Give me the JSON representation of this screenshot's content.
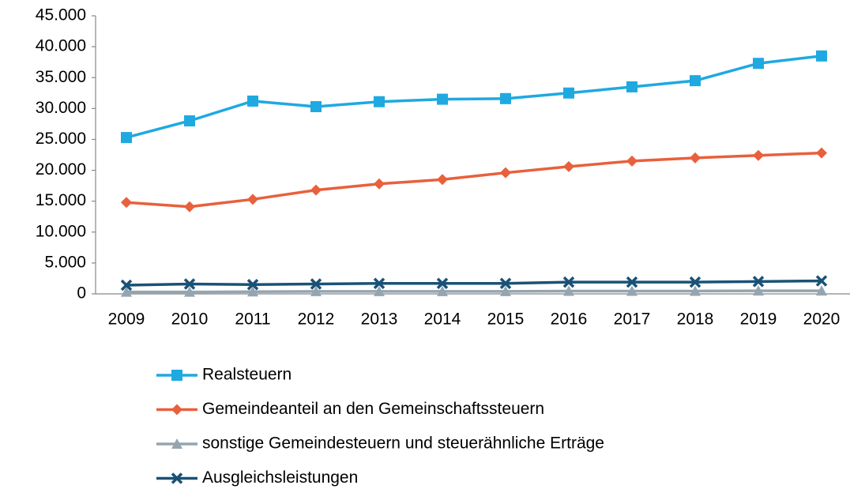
{
  "chart_data": {
    "type": "line",
    "categories": [
      "2009",
      "2010",
      "2011",
      "2012",
      "2013",
      "2014",
      "2015",
      "2016",
      "2017",
      "2018",
      "2019",
      "2020"
    ],
    "series": [
      {
        "name": "Realsteuern",
        "color": "#1fa9e1",
        "marker": "square",
        "values": [
          25300,
          28000,
          31200,
          30300,
          31100,
          31500,
          31600,
          32500,
          33500,
          34500,
          37300,
          38500
        ]
      },
      {
        "name": "Gemeindeanteil an den Gemeinschaftssteuern",
        "color": "#e8603c",
        "marker": "diamond",
        "values": [
          14800,
          14100,
          15300,
          16800,
          17800,
          18500,
          19600,
          20600,
          21500,
          22000,
          22400,
          22800
        ]
      },
      {
        "name": "sonstige Gemeindesteuern und steuerähnliche Erträge",
        "color": "#95a5b0",
        "marker": "triangle",
        "values": [
          300,
          300,
          350,
          400,
          400,
          400,
          400,
          450,
          450,
          450,
          500,
          500
        ]
      },
      {
        "name": "Ausgleichsleistungen",
        "color": "#1a5276",
        "marker": "x",
        "values": [
          1400,
          1600,
          1500,
          1600,
          1700,
          1700,
          1700,
          1900,
          1900,
          1900,
          2000,
          2100
        ]
      }
    ],
    "ylim": [
      0,
      45000
    ],
    "yticks": [
      0,
      {
        "value": 5000,
        "label": "5.000"
      },
      {
        "value": 10000,
        "label": "10.000"
      },
      {
        "value": 15000,
        "label": "15.000"
      },
      {
        "value": 20000,
        "label": "20.000"
      },
      {
        "value": 25000,
        "label": "25.000"
      },
      {
        "value": 30000,
        "label": "30.000"
      },
      {
        "value": 35000,
        "label": "35.000"
      },
      {
        "value": 40000,
        "label": "40.000"
      },
      {
        "value": 45000,
        "label": "45.000"
      }
    ],
    "grid": false,
    "legend": "bottom"
  }
}
